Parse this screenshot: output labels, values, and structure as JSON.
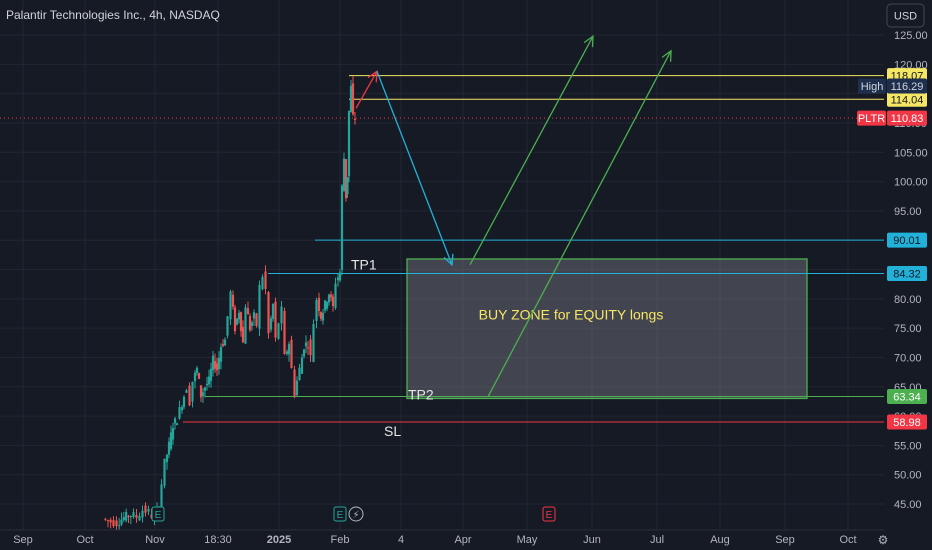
{
  "title": "Palantir Technologies Inc., 4h, NASDAQ",
  "currency_button": "USD",
  "chart_data": {
    "type": "candlestick",
    "symbol": "PLTR",
    "exchange": "NASDAQ",
    "timeframe": "4h",
    "y_ticks": [
      45,
      50,
      55,
      60,
      65,
      70,
      75,
      80,
      85,
      90,
      95,
      100,
      105,
      110,
      115,
      120,
      125
    ],
    "ylim": [
      42,
      127
    ],
    "x_ticks": [
      {
        "label": "Sep",
        "bold": false
      },
      {
        "label": "Oct",
        "bold": false
      },
      {
        "label": "Nov",
        "bold": false
      },
      {
        "label": "18:30",
        "bold": false
      },
      {
        "label": "2025",
        "bold": true
      },
      {
        "label": "Feb",
        "bold": false
      },
      {
        "label": "4",
        "bold": false
      },
      {
        "label": "Apr",
        "bold": false
      },
      {
        "label": "May",
        "bold": false
      },
      {
        "label": "Jun",
        "bold": false
      },
      {
        "label": "Jul",
        "bold": false
      },
      {
        "label": "Aug",
        "bold": false
      },
      {
        "label": "Sep",
        "bold": false
      },
      {
        "label": "Oct",
        "bold": false
      }
    ],
    "price_levels": [
      {
        "value": 118.07,
        "label": "118.07",
        "color": "#f5e663",
        "kind": "line"
      },
      {
        "value": 114.04,
        "label": "114.04",
        "color": "#f5e663",
        "kind": "line"
      },
      {
        "value": 90.01,
        "label": "90.01",
        "color": "#22b1d8",
        "kind": "line"
      },
      {
        "value": 84.32,
        "label": "84.32",
        "color": "#22b1d8",
        "kind": "line"
      },
      {
        "value": 63.34,
        "label": "63.34",
        "color": "#4caf50",
        "kind": "line"
      },
      {
        "value": 58.98,
        "label": "58.98",
        "color": "#f23645",
        "kind": "line"
      }
    ],
    "high_marker": {
      "name": "High",
      "value": 116.29,
      "label": "116.29",
      "color": "#1e2f4d"
    },
    "last_price": {
      "name": "PLTR",
      "value": 110.83,
      "label": "110.83",
      "color": "#f23645"
    },
    "buy_zone": {
      "label": "BUY ZONE for EQUITY longs",
      "top": 86.8,
      "bottom": 63.0,
      "color": "#4caf50"
    },
    "annotations": [
      {
        "text": "TP1",
        "value": 84.32
      },
      {
        "text": "TP2",
        "value": 63.34
      },
      {
        "text": "SL",
        "value": 58.98
      }
    ],
    "events": [
      {
        "type": "earnings",
        "symbol": "E"
      },
      {
        "type": "earnings",
        "symbol": "E"
      },
      {
        "type": "dividend",
        "symbol": "⚡"
      },
      {
        "type": "earnings-upcoming",
        "symbol": "E"
      }
    ],
    "price_path": [
      [
        104,
        42.5
      ],
      [
        112,
        42
      ],
      [
        118,
        41.8
      ],
      [
        125,
        42.7
      ],
      [
        132,
        43.2
      ],
      [
        138,
        42.8
      ],
      [
        144,
        44
      ],
      [
        150,
        43.6
      ],
      [
        156,
        42.5
      ],
      [
        160,
        45
      ],
      [
        163,
        48.5
      ],
      [
        166,
        52
      ],
      [
        170,
        55
      ],
      [
        174,
        58.5
      ],
      [
        178,
        59.5
      ],
      [
        181,
        61
      ],
      [
        185,
        63.5
      ],
      [
        188,
        65
      ],
      [
        191,
        62.5
      ],
      [
        194,
        66
      ],
      [
        198,
        68
      ],
      [
        202,
        63.5
      ],
      [
        206,
        65
      ],
      [
        210,
        66
      ],
      [
        214,
        69.5
      ],
      [
        218,
        68
      ],
      [
        222,
        72
      ],
      [
        226,
        73
      ],
      [
        229,
        77
      ],
      [
        232,
        81
      ],
      [
        236,
        75
      ],
      [
        240,
        78
      ],
      [
        244,
        72.5
      ],
      [
        247,
        79
      ],
      [
        251,
        75
      ],
      [
        255,
        77
      ],
      [
        258,
        75.5
      ],
      [
        261,
        82
      ],
      [
        264,
        84
      ],
      [
        267,
        81.5
      ],
      [
        270,
        74
      ],
      [
        274,
        79
      ],
      [
        277,
        73
      ],
      [
        280,
        76
      ],
      [
        283,
        78
      ],
      [
        286,
        70
      ],
      [
        290,
        72.5
      ],
      [
        293,
        68
      ],
      [
        296,
        64
      ],
      [
        298,
        66
      ],
      [
        301,
        68
      ],
      [
        305,
        72
      ],
      [
        309,
        72.5
      ],
      [
        312,
        70
      ],
      [
        315,
        76
      ],
      [
        318,
        80
      ],
      [
        322,
        77
      ],
      [
        326,
        79
      ],
      [
        330,
        81
      ],
      [
        334,
        78.5
      ],
      [
        337,
        83
      ],
      [
        341,
        84.5
      ],
      [
        343,
        99
      ],
      [
        345,
        104
      ],
      [
        347,
        97.5
      ],
      [
        348,
        101
      ],
      [
        350,
        112
      ],
      [
        352,
        116
      ],
      [
        354,
        111
      ],
      [
        356,
        110.8
      ]
    ],
    "arrows": [
      {
        "color": "#f23645",
        "points": [
          [
            356,
            112.5
          ],
          [
            377,
            118.8
          ]
        ]
      },
      {
        "color": "#22b1d8",
        "points": [
          [
            377,
            118.8
          ],
          [
            452,
            85.8
          ]
        ]
      },
      {
        "color": "#4caf50",
        "points": [
          [
            470,
            85.8
          ],
          [
            593,
            124.8
          ]
        ]
      },
      {
        "color": "#4caf50",
        "points": [
          [
            488,
            63.3
          ],
          [
            671,
            122.3
          ]
        ]
      }
    ]
  }
}
